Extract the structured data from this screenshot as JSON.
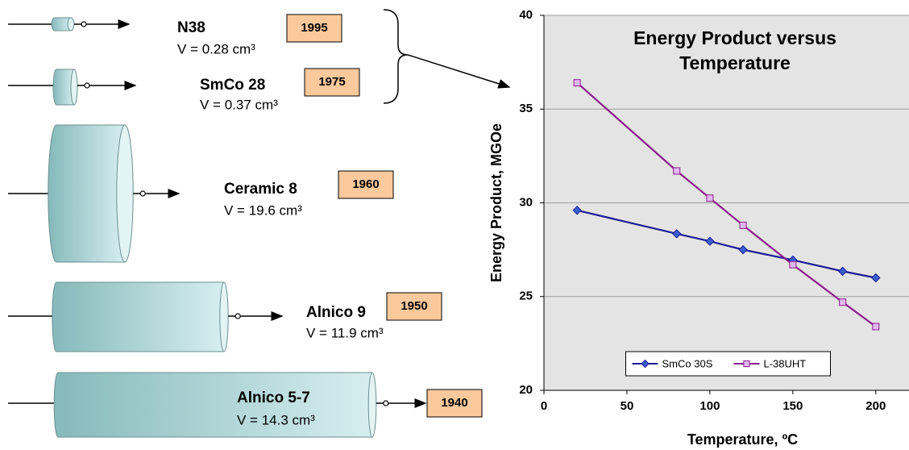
{
  "chart_data": {
    "type": "line",
    "title": "Energy Product versus Temperature",
    "x_label": "Temperature, ºC",
    "y_label": "Energy Product, MGOe",
    "xlim": [
      0,
      220
    ],
    "xticks": [
      0,
      50,
      100,
      150,
      200
    ],
    "ylim": [
      20,
      40
    ],
    "yticks": [
      20,
      25,
      30,
      35,
      40
    ],
    "grid": true,
    "legend": "lower center",
    "series": [
      {
        "name": "SmCo 30S",
        "color": "#1c1c96",
        "marker": "diamond",
        "marker_color": "#3a5fd0",
        "x": [
          20,
          80,
          100,
          120,
          150,
          180,
          200
        ],
        "values": [
          29.6,
          28.35,
          27.95,
          27.5,
          26.95,
          26.35,
          26.0
        ]
      },
      {
        "name": "L-38UHT",
        "color": "#8b1a8b",
        "marker": "square",
        "marker_color": "#e3b8f0",
        "x": [
          20,
          80,
          100,
          120,
          150,
          180,
          200
        ],
        "values": [
          36.4,
          31.7,
          30.25,
          28.8,
          26.7,
          24.7,
          23.4
        ]
      }
    ]
  },
  "magnets": [
    {
      "name": "N38",
      "volume": "V = 0.28 cm³",
      "year": "1995"
    },
    {
      "name": "SmCo 28",
      "volume": "V = 0.37 cm³",
      "year": "1975"
    },
    {
      "name": "Ceramic 8",
      "volume": "V = 19.6 cm³",
      "year": "1960"
    },
    {
      "name": "Alnico 9",
      "volume": "V = 11.9 cm³",
      "year": "1950"
    },
    {
      "name": "Alnico 5-7",
      "volume": "V = 14.3 cm³",
      "year": "1940"
    }
  ]
}
